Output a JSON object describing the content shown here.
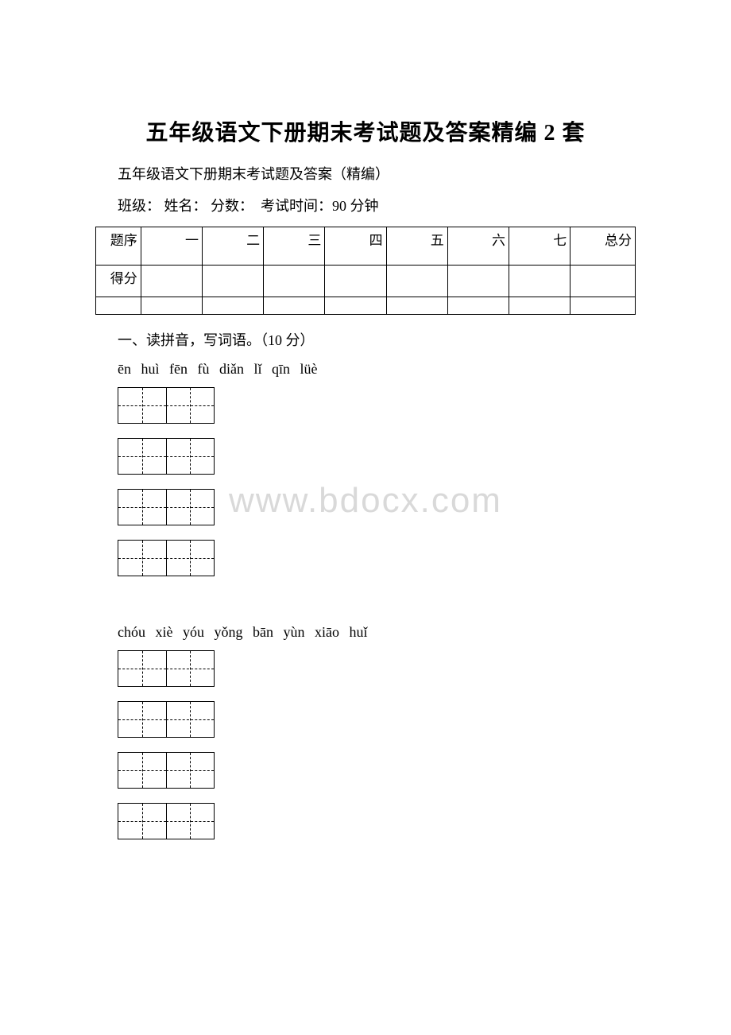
{
  "title": "五年级语文下册期末考试题及答案精编 2 套",
  "subtitle": "五年级语文下册期末考试题及答案（精编）",
  "info": {
    "class_label": "班级：",
    "name_label": "姓名：",
    "score_label": "分数：",
    "time_label": "考试时间：90 分钟"
  },
  "score_table": {
    "row1": [
      "题序",
      "一",
      "二",
      "三",
      "四",
      "五",
      "六",
      "七",
      "总分"
    ],
    "row2": [
      "得分",
      "",
      "",
      "",
      "",
      "",
      "",
      "",
      ""
    ],
    "row3": [
      "",
      "",
      "",
      "",
      "",
      "",
      "",
      "",
      ""
    ]
  },
  "section1": {
    "heading": "一、读拼音，写词语。（10 分）",
    "pinyin_line1": "ēn huì   fēn fù   diǎn lǐ   qīn lüè",
    "pinyin_line2": "chóu xiè   yóu yǒng   bān yùn   xiāo huǐ"
  },
  "watermark": "www.bdocx.com",
  "colors": {
    "text": "#000000",
    "background": "#ffffff",
    "watermark": "#d9d9d9",
    "border": "#000000"
  }
}
